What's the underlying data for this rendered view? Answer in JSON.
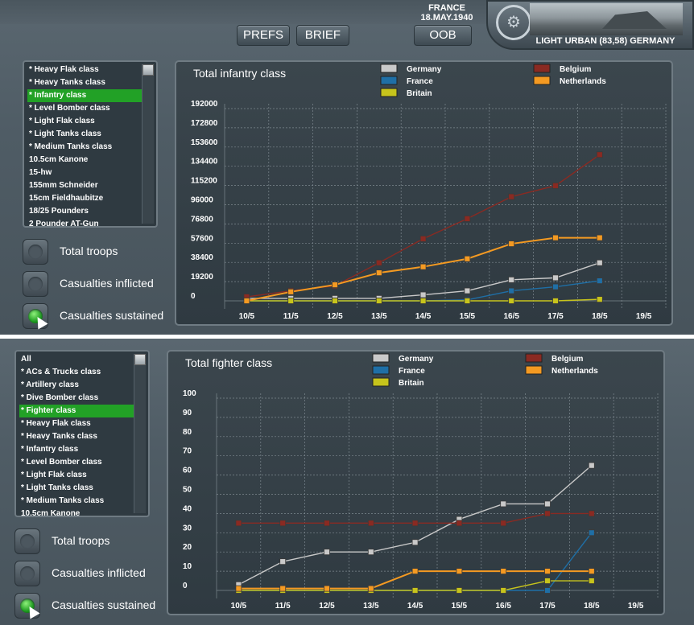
{
  "header": {
    "country": "FRANCE",
    "date": "18.MAY.1940",
    "buttons": {
      "prefs": "PREFS",
      "brief": "BRIEF",
      "oob": "OOB"
    },
    "terrain": "LIGHT URBAN (83,58) GERMANY"
  },
  "top": {
    "list_items": [
      "* Heavy Flak class",
      "* Heavy Tanks class",
      "* Infantry class",
      "* Level Bomber class",
      "* Light Flak class",
      "* Light Tanks class",
      "* Medium Tanks class",
      "10.5cm Kanone",
      "15-hw",
      "155mm Schneider",
      "15cm Fieldhaubitze",
      "18/25 Pounders",
      "2 Pounder AT-Gun"
    ],
    "selected_index": 2,
    "options": [
      "Total troops",
      "Casualties inflicted",
      "Casualties sustained"
    ],
    "selected_option": 2
  },
  "bottom": {
    "list_items": [
      "All",
      "* ACs & Trucks class",
      "* Artillery class",
      "* Dive Bomber class",
      "* Fighter class",
      "* Heavy Flak class",
      "* Heavy Tanks class",
      "* Infantry class",
      "* Level Bomber class",
      "* Light Flak class",
      "* Light Tanks class",
      "* Medium Tanks class",
      "10.5cm Kanone"
    ],
    "selected_index": 4,
    "options": [
      "Total troops",
      "Casualties inflicted",
      "Casualties sustained"
    ],
    "selected_option": 2
  },
  "colors": {
    "Germany": "#c9c9c9",
    "France": "#1f6fa6",
    "Britain": "#c7c41c",
    "Belgium": "#8a2a22",
    "Netherlands": "#f49a22",
    "grid": "#7d888f",
    "selected": "#22a126"
  },
  "chart_data": [
    {
      "type": "line",
      "title": "Total infantry class",
      "categories": [
        "10/5",
        "11/5",
        "12/5",
        "13/5",
        "14/5",
        "15/5",
        "16/5",
        "17/5",
        "18/5",
        "19/5"
      ],
      "y_ticks": [
        "192000",
        "172800",
        "153600",
        "134400",
        "115200",
        "96000",
        "76800",
        "57600",
        "38400",
        "19200",
        "0"
      ],
      "ylim": [
        0,
        192000
      ],
      "legend": [
        "Germany",
        "France",
        "Britain",
        "Belgium",
        "Netherlands"
      ],
      "series": [
        {
          "name": "Germany",
          "values": [
            2500,
            2500,
            2500,
            2500,
            6000,
            10000,
            21000,
            23000,
            38000,
            null
          ]
        },
        {
          "name": "France",
          "values": [
            0,
            0,
            0,
            0,
            0,
            1000,
            10000,
            14000,
            20000,
            null
          ]
        },
        {
          "name": "Britain",
          "values": [
            0,
            0,
            0,
            0,
            0,
            0,
            0,
            0,
            1500,
            null
          ]
        },
        {
          "name": "Belgium",
          "values": [
            4000,
            10000,
            15000,
            38000,
            62000,
            82000,
            104000,
            115000,
            146000,
            null
          ]
        },
        {
          "name": "Netherlands",
          "values": [
            0,
            9000,
            16000,
            28000,
            34000,
            42000,
            57000,
            63000,
            63000,
            null
          ]
        }
      ]
    },
    {
      "type": "line",
      "title": "Total fighter class",
      "categories": [
        "10/5",
        "11/5",
        "12/5",
        "13/5",
        "14/5",
        "15/5",
        "16/5",
        "17/5",
        "18/5",
        "19/5"
      ],
      "y_ticks": [
        "100",
        "90",
        "80",
        "70",
        "60",
        "50",
        "40",
        "30",
        "20",
        "10",
        "0"
      ],
      "ylim": [
        0,
        100
      ],
      "legend": [
        "Germany",
        "France",
        "Britain",
        "Belgium",
        "Netherlands"
      ],
      "series": [
        {
          "name": "Germany",
          "values": [
            3,
            15,
            20,
            20,
            25,
            37,
            45,
            45,
            65,
            null
          ]
        },
        {
          "name": "France",
          "values": [
            0,
            0,
            0,
            0,
            0,
            0,
            0,
            0,
            30,
            null
          ]
        },
        {
          "name": "Britain",
          "values": [
            0,
            0,
            0,
            0,
            0,
            0,
            0,
            5,
            5,
            null
          ]
        },
        {
          "name": "Belgium",
          "values": [
            35,
            35,
            35,
            35,
            35,
            35,
            35,
            40,
            40,
            null
          ]
        },
        {
          "name": "Netherlands",
          "values": [
            1,
            1,
            1,
            1,
            10,
            10,
            10,
            10,
            10,
            null
          ]
        }
      ]
    }
  ]
}
